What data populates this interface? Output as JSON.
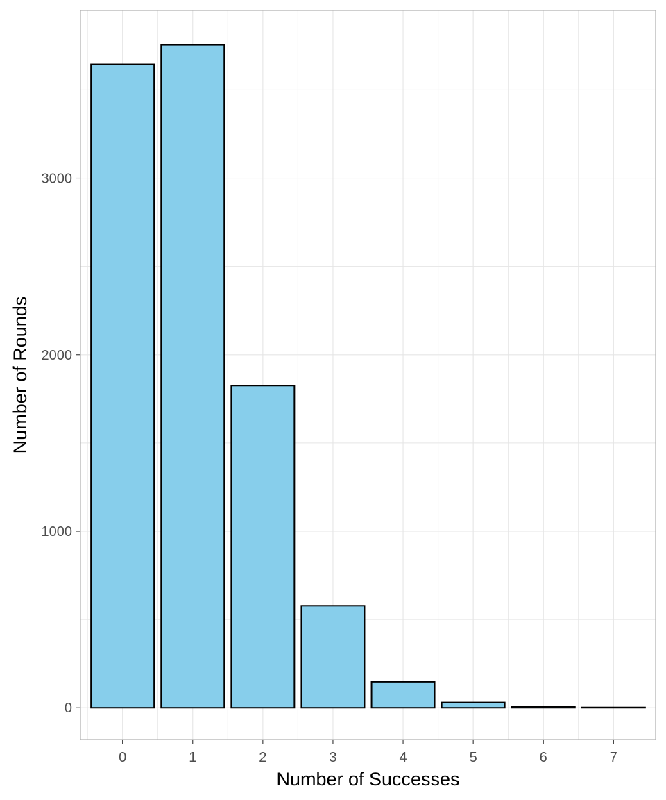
{
  "chart_data": {
    "type": "bar",
    "title": "",
    "xlabel": "Number of Successes",
    "ylabel": "Number of Rounds",
    "categories": [
      "0",
      "1",
      "2",
      "3",
      "4",
      "5",
      "6",
      "7"
    ],
    "values": [
      3645,
      3755,
      1825,
      578,
      147,
      30,
      8,
      2
    ],
    "ylim": [
      -180,
      3950
    ],
    "yticks": [
      0,
      1000,
      2000,
      3000
    ],
    "grid": true,
    "legend": "none",
    "colors": {
      "bar_fill": "#87CEEB",
      "bar_stroke": "#000000",
      "grid": "#e5e5e5",
      "panel_border": "#b3b3b3",
      "tick_text": "#4d4d4d",
      "title_text": "#000000"
    }
  }
}
